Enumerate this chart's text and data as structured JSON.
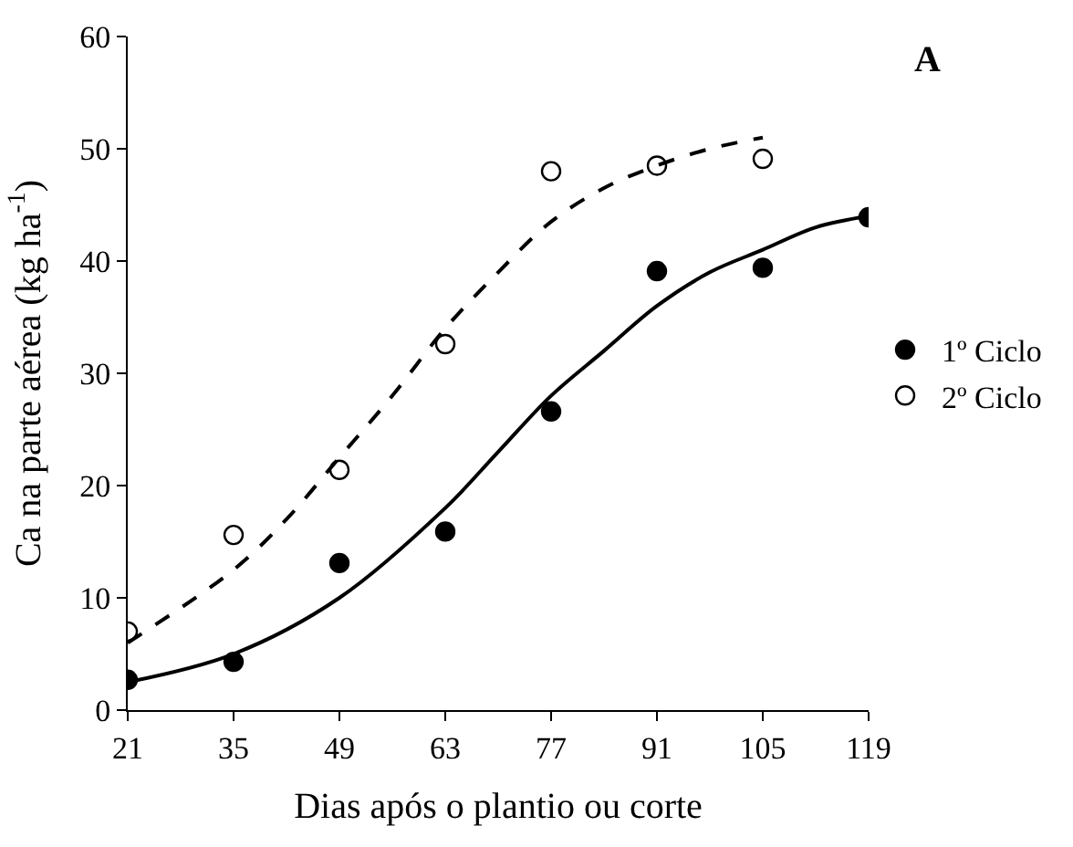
{
  "chart_data": {
    "type": "scatter",
    "xlabel": "Dias após o plantio ou corte",
    "ylabel": "Ca na parte aérea (kg ha$^{-1}$)",
    "annotations": [
      "A"
    ],
    "xlim": [
      21,
      119
    ],
    "xticks": [
      21,
      35,
      49,
      63,
      77,
      91,
      105,
      119
    ],
    "ylim": [
      0,
      60
    ],
    "yticks": [
      0,
      10,
      20,
      30,
      40,
      50,
      60
    ],
    "legend": "right",
    "series": [
      {
        "name": "1º Ciclo",
        "color": "#000000",
        "marker": "circle",
        "x": [
          21,
          35,
          49,
          63,
          77,
          91,
          105,
          119
        ],
        "values": [
          2.7,
          4.3,
          13.1,
          15.9,
          26.6,
          39.1,
          39.4,
          43.9
        ]
      },
      {
        "name": "2º Ciclo",
        "color": "#ffffff",
        "marker": "circle",
        "x": [
          21,
          35,
          49,
          63,
          77,
          91,
          105
        ],
        "values": [
          7.0,
          15.6,
          21.4,
          32.6,
          48.0,
          48.5,
          49.1
        ]
      },
      {
        "type": "line",
        "color": "#000000",
        "line_style": "solid",
        "x": [
          21,
          35,
          49,
          63,
          70,
          77,
          84,
          91,
          98,
          105,
          112,
          119
        ],
        "values": [
          2.5,
          5,
          10,
          18,
          23,
          28,
          32,
          36,
          39,
          41,
          43,
          44
        ]
      },
      {
        "type": "line",
        "color": "#000000",
        "line_style": "dashed",
        "x": [
          21,
          35,
          42,
          49,
          56,
          63,
          70,
          77,
          84,
          91,
          98,
          105
        ],
        "values": [
          6,
          12.5,
          17,
          22.5,
          28,
          34,
          39,
          43.5,
          46.5,
          48.5,
          50,
          51
        ]
      }
    ]
  }
}
